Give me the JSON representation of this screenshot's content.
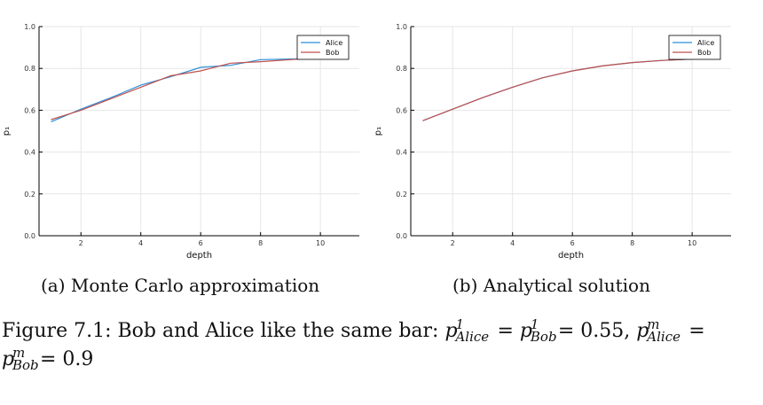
{
  "chart_data": [
    {
      "type": "line",
      "panel_caption": "(a) Monte Carlo approximation",
      "xlabel": "depth",
      "ylabel": "p₁",
      "xlim": [
        0.6,
        11.3
      ],
      "ylim": [
        0.0,
        1.0
      ],
      "x_ticks": [
        "2",
        "4",
        "6",
        "8",
        "10"
      ],
      "y_ticks": [
        "0.0",
        "0.2",
        "0.4",
        "0.6",
        "0.8",
        "1.0"
      ],
      "grid": true,
      "legend_position": "top-right",
      "x": [
        1,
        2,
        3,
        4,
        5,
        6,
        7,
        8,
        9,
        10
      ],
      "series": [
        {
          "name": "Alice",
          "color": "#2b8fd8",
          "values": [
            0.545,
            0.605,
            0.66,
            0.72,
            0.76,
            0.805,
            0.815,
            0.842,
            0.845,
            0.848
          ]
        },
        {
          "name": "Bob",
          "color": "#c0504d",
          "values": [
            0.555,
            0.6,
            0.655,
            0.71,
            0.765,
            0.788,
            0.825,
            0.832,
            0.842,
            0.85
          ]
        }
      ]
    },
    {
      "type": "line",
      "panel_caption": "(b) Analytical solution",
      "xlabel": "depth",
      "ylabel": "p₁",
      "xlim": [
        0.6,
        11.3
      ],
      "ylim": [
        0.0,
        1.0
      ],
      "x_ticks": [
        "2",
        "4",
        "6",
        "8",
        "10"
      ],
      "y_ticks": [
        "0.0",
        "0.2",
        "0.4",
        "0.6",
        "0.8",
        "1.0"
      ],
      "grid": true,
      "legend_position": "top-right",
      "x": [
        1,
        2,
        3,
        4,
        5,
        6,
        7,
        8,
        9,
        10
      ],
      "series": [
        {
          "name": "Alice",
          "color": "#2b8fd8",
          "values": [
            0.55,
            0.605,
            0.66,
            0.71,
            0.755,
            0.788,
            0.812,
            0.828,
            0.838,
            0.845
          ]
        },
        {
          "name": "Bob",
          "color": "#c0504d",
          "values": [
            0.55,
            0.605,
            0.66,
            0.71,
            0.755,
            0.788,
            0.812,
            0.828,
            0.838,
            0.845
          ]
        }
      ]
    }
  ],
  "caption": {
    "prefix": "Figure 7.1: Bob and Alice like the same bar: ",
    "p": "p",
    "sup_1": "1",
    "sup_m": "m",
    "sub_alice": "Alice",
    "sub_bob": "Bob",
    "eq": " = ",
    "value_1": " = 0.55, ",
    "value_m": " = 0.9"
  }
}
